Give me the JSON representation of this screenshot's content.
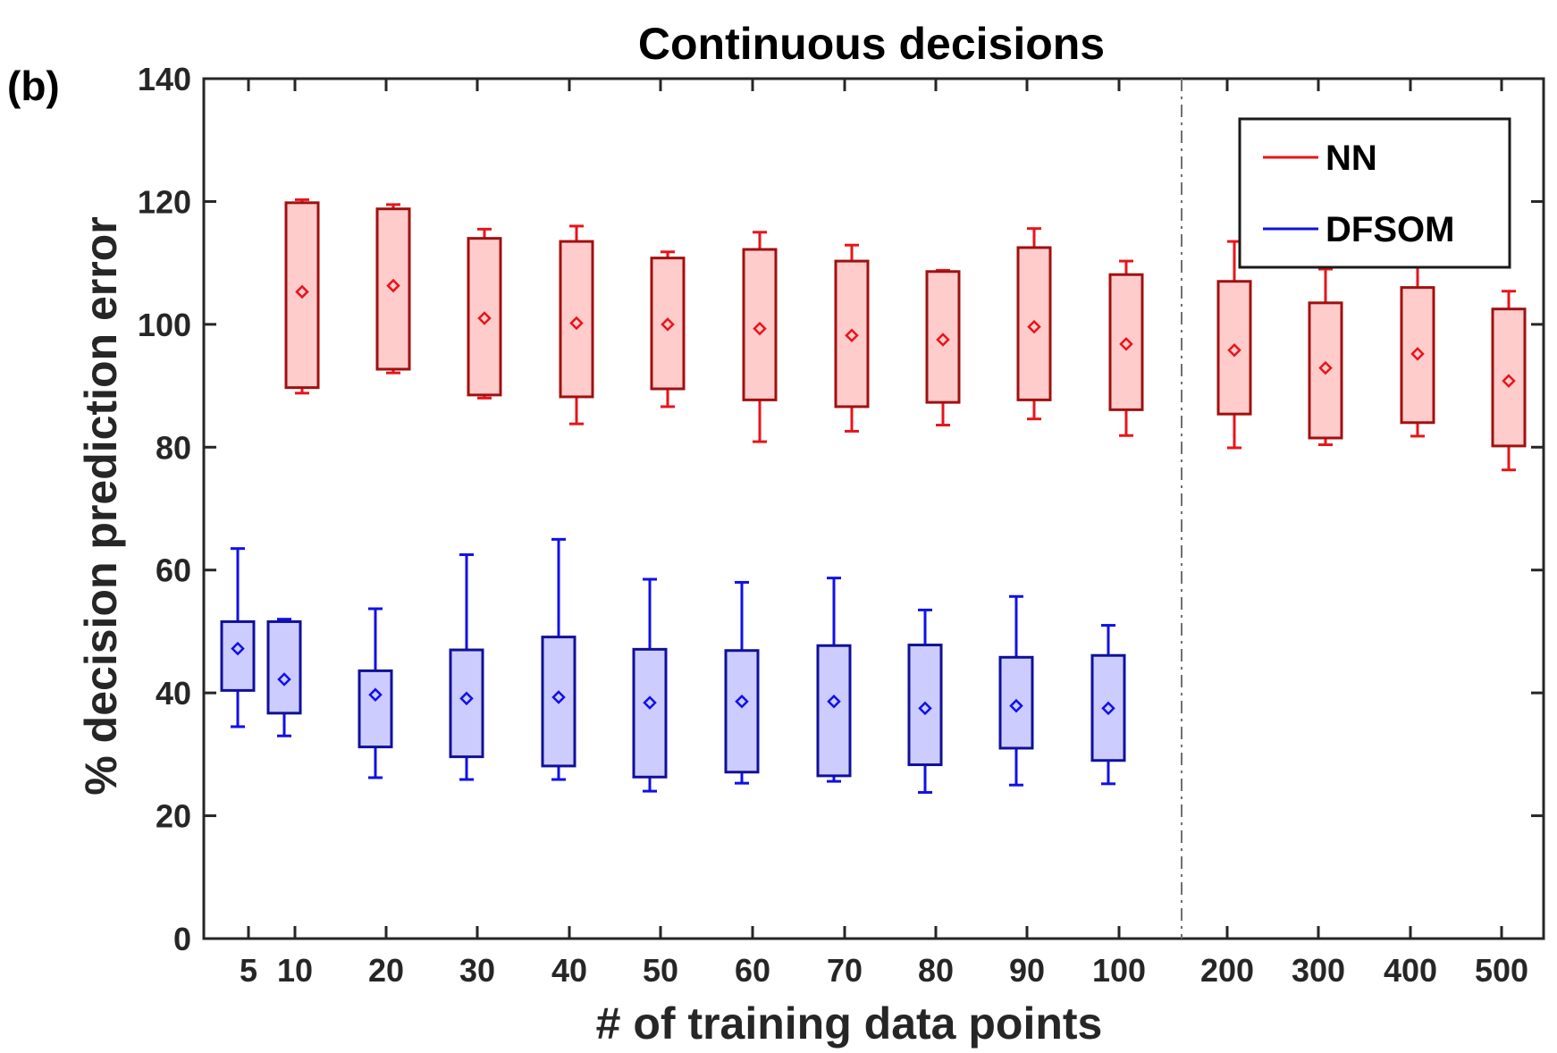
{
  "panel_label": "(b)",
  "chart_data": {
    "type": "box",
    "title": "Continuous decisions",
    "xlabel": "# of training data points",
    "ylabel": "% decision prediction error",
    "ylim": [
      0,
      140
    ],
    "yticks": [
      0,
      20,
      40,
      60,
      80,
      100,
      120,
      140
    ],
    "xticks": [
      "5",
      "10",
      "20",
      "30",
      "40",
      "50",
      "60",
      "70",
      "80",
      "90",
      "100",
      "200",
      "300",
      "400",
      "500"
    ],
    "separator_after": "100",
    "legend": {
      "position": "top-right",
      "entries": [
        "NN",
        "DFSOM"
      ]
    },
    "colors": {
      "NN_line": "#e8141b",
      "NN_box": "#a01010",
      "NN_fill": "#ffcccc",
      "DFSOM_line": "#1010e8",
      "DFSOM_box": "#10109a",
      "DFSOM_fill": "#ccccff",
      "axis": "#262626",
      "separator": "#707070"
    },
    "series": [
      {
        "name": "NN",
        "boxes": [
          {
            "x": "10",
            "whislo": 88.8,
            "q1": 89.7,
            "mean": 105.3,
            "q3": 119.8,
            "whishi": 120.3
          },
          {
            "x": "20",
            "whislo": 92.1,
            "q1": 92.7,
            "mean": 106.3,
            "q3": 118.8,
            "whishi": 119.5
          },
          {
            "x": "30",
            "whislo": 88.0,
            "q1": 88.5,
            "mean": 101.0,
            "q3": 114.0,
            "whishi": 115.5
          },
          {
            "x": "40",
            "whislo": 83.8,
            "q1": 88.2,
            "mean": 100.2,
            "q3": 113.5,
            "whishi": 116.0
          },
          {
            "x": "50",
            "whislo": 86.6,
            "q1": 89.5,
            "mean": 100.0,
            "q3": 110.8,
            "whishi": 111.8
          },
          {
            "x": "60",
            "whislo": 80.9,
            "q1": 87.7,
            "mean": 99.3,
            "q3": 112.2,
            "whishi": 115.0
          },
          {
            "x": "70",
            "whislo": 82.6,
            "q1": 86.6,
            "mean": 98.2,
            "q3": 110.3,
            "whishi": 112.9
          },
          {
            "x": "80",
            "whislo": 83.6,
            "q1": 87.3,
            "mean": 97.5,
            "q3": 108.6,
            "whishi": 108.8
          },
          {
            "x": "90",
            "whislo": 84.6,
            "q1": 87.7,
            "mean": 99.6,
            "q3": 112.5,
            "whishi": 115.6
          },
          {
            "x": "100",
            "whislo": 81.9,
            "q1": 86.1,
            "mean": 96.8,
            "q3": 108.1,
            "whishi": 110.3
          },
          {
            "x": "200",
            "whislo": 79.9,
            "q1": 85.4,
            "mean": 95.8,
            "q3": 107.0,
            "whishi": 113.5
          },
          {
            "x": "300",
            "whislo": 80.4,
            "q1": 81.5,
            "mean": 92.9,
            "q3": 103.5,
            "whishi": 109.0
          },
          {
            "x": "400",
            "whislo": 81.8,
            "q1": 84.0,
            "mean": 95.2,
            "q3": 106.0,
            "whishi": 109.5
          },
          {
            "x": "500",
            "whislo": 76.3,
            "q1": 80.2,
            "mean": 90.8,
            "q3": 102.5,
            "whishi": 105.4
          }
        ]
      },
      {
        "name": "DFSOM",
        "boxes": [
          {
            "x": "5",
            "whislo": 34.5,
            "q1": 40.4,
            "mean": 47.2,
            "q3": 51.6,
            "whishi": 63.5
          },
          {
            "x": "10",
            "whislo": 33.0,
            "q1": 36.7,
            "mean": 42.2,
            "q3": 51.6,
            "whishi": 52.0
          },
          {
            "x": "20",
            "whislo": 26.2,
            "q1": 31.2,
            "mean": 39.7,
            "q3": 43.6,
            "whishi": 53.7
          },
          {
            "x": "30",
            "whislo": 25.9,
            "q1": 29.6,
            "mean": 39.1,
            "q3": 47.0,
            "whishi": 62.5
          },
          {
            "x": "40",
            "whislo": 25.9,
            "q1": 28.1,
            "mean": 39.3,
            "q3": 49.1,
            "whishi": 65.0
          },
          {
            "x": "50",
            "whislo": 24.0,
            "q1": 26.3,
            "mean": 38.4,
            "q3": 47.1,
            "whishi": 58.5
          },
          {
            "x": "60",
            "whislo": 25.3,
            "q1": 27.1,
            "mean": 38.6,
            "q3": 46.9,
            "whishi": 58.0
          },
          {
            "x": "70",
            "whislo": 25.6,
            "q1": 26.5,
            "mean": 38.6,
            "q3": 47.7,
            "whishi": 58.7
          },
          {
            "x": "80",
            "whislo": 23.8,
            "q1": 28.3,
            "mean": 37.5,
            "q3": 47.8,
            "whishi": 53.5
          },
          {
            "x": "90",
            "whislo": 25.0,
            "q1": 31.0,
            "mean": 37.9,
            "q3": 45.8,
            "whishi": 55.7
          },
          {
            "x": "100",
            "whislo": 25.2,
            "q1": 29.0,
            "mean": 37.5,
            "q3": 46.1,
            "whishi": 51.0
          }
        ]
      }
    ]
  }
}
